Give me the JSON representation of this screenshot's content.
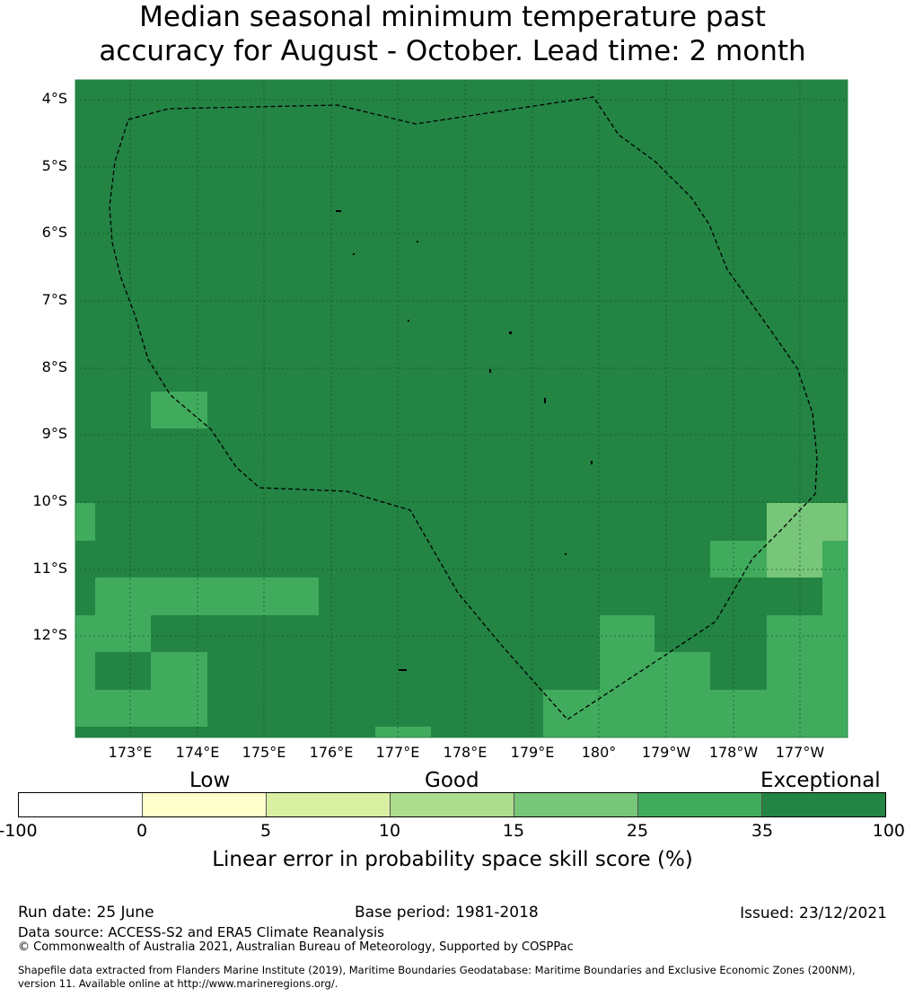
{
  "title_line1": "Median seasonal minimum temperature past",
  "title_line2": "accuracy for August - October. Lead time: 2 month",
  "map": {
    "lat_labels": [
      "4°S",
      "5°S",
      "6°S",
      "7°S",
      "8°S",
      "9°S",
      "10°S",
      "11°S",
      "12°S"
    ],
    "lon_labels": [
      "173°E",
      "174°E",
      "175°E",
      "176°E",
      "177°E",
      "178°E",
      "179°E",
      "180°",
      "179°W",
      "178°W",
      "177°W"
    ],
    "base_color": "#238443",
    "boundary_style": "dashed"
  },
  "legend": {
    "categories": [
      "Low",
      "Good",
      "Exceptional"
    ],
    "ticks": [
      "-100",
      "0",
      "5",
      "10",
      "15",
      "25",
      "35",
      "100"
    ],
    "colors": [
      "#ffffff",
      "#ffffcc",
      "#d9f0a3",
      "#addd8e",
      "#78c679",
      "#41ab5d",
      "#238443"
    ],
    "title": "Linear error in probability space skill score (%)"
  },
  "footer": {
    "run_date": "Run date: 25 June",
    "base_period": "Base period: 1981-2018",
    "issued": "Issued: 23/12/2021",
    "data_source": "Data source: ACCESS-S2 and ERA5 Climate Reanalysis",
    "copyright": "© Commonwealth of Australia 2021, Australian Bureau of Meteorology, Supported by COSPPac",
    "shapefile_1": "Shapefile data extracted from Flanders Marine Institute (2019), Maritime Boundaries Geodatabase: Maritime Boundaries and Exclusive Economic Zones (200NM),",
    "shapefile_2": "version 11. Available online at http://www.marineregions.org/."
  }
}
